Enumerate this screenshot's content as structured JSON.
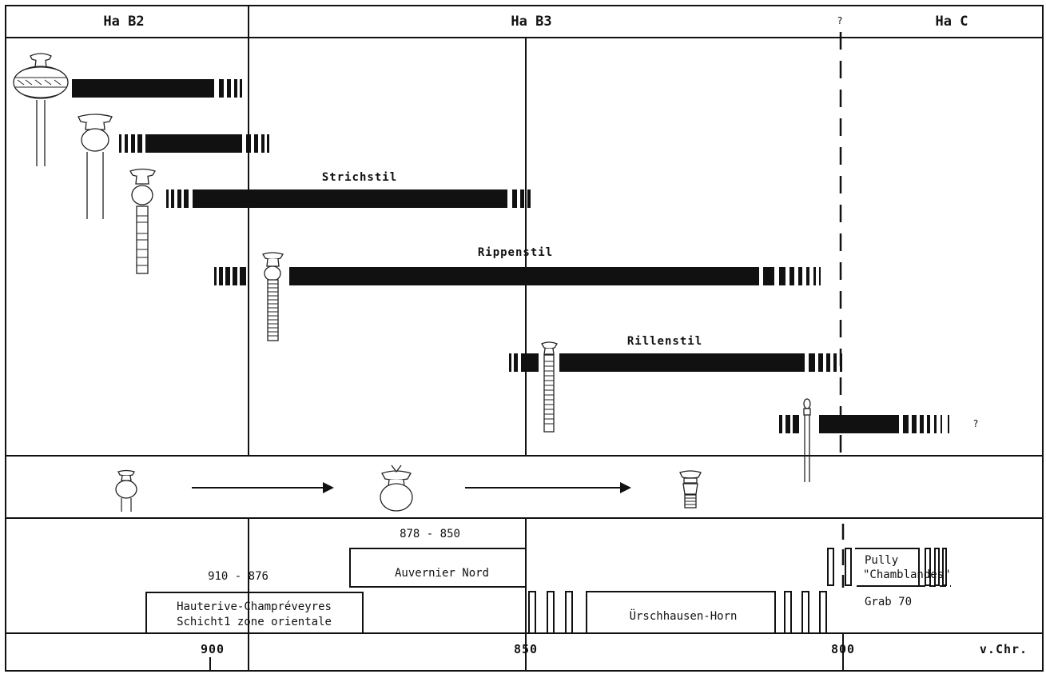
{
  "periods": {
    "ha_b2": "Ha  B2",
    "ha_b3": "Ha  B3",
    "ha_c": "Ha  C",
    "boundary_question": "?"
  },
  "styles": {
    "strichstil": "Strichstil",
    "rippenstil": "Rippenstil",
    "rillenstil": "Rillenstil",
    "late_question": "?"
  },
  "sites": {
    "hauterive_dates": "910 - 876",
    "hauterive_line1": "Hauterive-Champréveyres",
    "hauterive_line2": "Schicht1 zone orientale",
    "auvernier_dates": "878 - 850",
    "auvernier": "Auvernier Nord",
    "urschhausen": "Ürschhausen-Horn",
    "pully_line1": "Pully",
    "pully_line2": "\"Chamblandes\"",
    "grab": "Grab 70"
  },
  "axis": {
    "tick_900": "900",
    "tick_850": "850",
    "tick_800": "800",
    "unit": "v.Chr."
  }
}
